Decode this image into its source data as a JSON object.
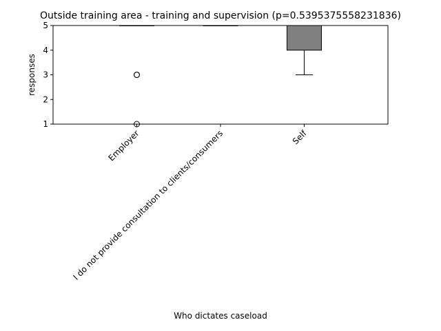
{
  "chart_data": {
    "type": "box",
    "title": "Outside training area - training and supervision (p=0.5395375558231836)",
    "xlabel": "Who dictates caseload",
    "ylabel": "responses",
    "ylim": [
      1,
      5
    ],
    "yticks": [
      1,
      2,
      3,
      4,
      5
    ],
    "categories": [
      "Employer",
      "I do not provide consultation to clients/consumers",
      "Self"
    ],
    "boxes": [
      {
        "category": "Employer",
        "q1": 5,
        "median": 5,
        "q3": 5,
        "whisker_low": 5,
        "whisker_high": 5,
        "outliers": [
          3,
          3,
          1
        ]
      },
      {
        "category": "I do not provide consultation to clients/consumers",
        "q1": 5,
        "median": 5,
        "q3": 5,
        "whisker_low": 5,
        "whisker_high": 5,
        "outliers": []
      },
      {
        "category": "Self",
        "q1": 4,
        "median": 5,
        "q3": 5,
        "whisker_low": 3,
        "whisker_high": 5,
        "outliers": []
      }
    ],
    "box_color": "#808080",
    "edge_color": "#000000",
    "grid": false
  }
}
